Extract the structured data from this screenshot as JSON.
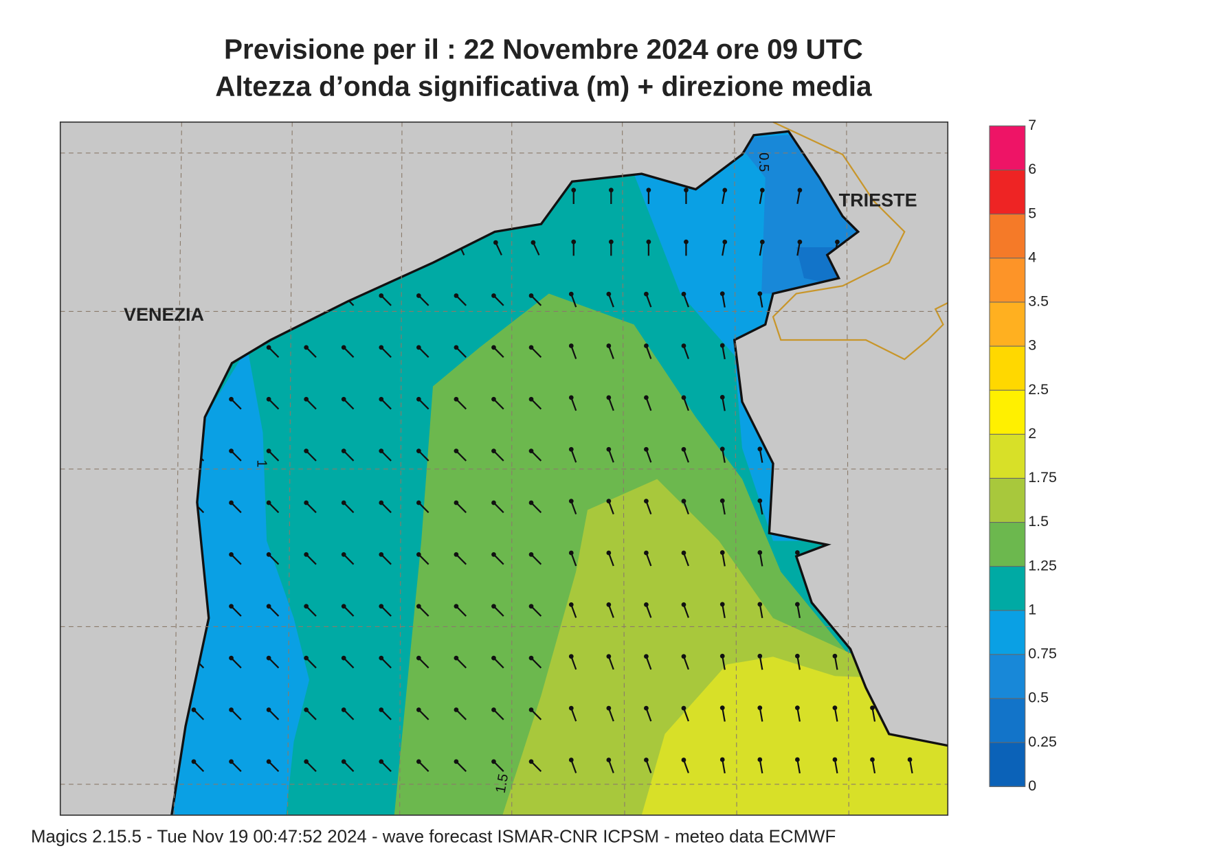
{
  "header": {
    "title": "Previsione per il  :  22 Novembre  2024   ore 09 UTC",
    "subtitle": "Altezza d’onda significativa (m) + direzione media"
  },
  "map": {
    "cities": [
      "VENEZIA",
      "TRIESTE"
    ],
    "contour_labels": [
      "0.5",
      "1",
      "1.5"
    ]
  },
  "colorbar": {
    "ticks": [
      0,
      0.25,
      0.5,
      0.75,
      1,
      1.25,
      1.5,
      1.75,
      2,
      2.5,
      3,
      3.5,
      4,
      5,
      6,
      7
    ],
    "colors": [
      "#0b62b8",
      "#1274c9",
      "#1888d8",
      "#0aa0e4",
      "#00aaa4",
      "#6cb84e",
      "#a8c83c",
      "#d8e028",
      "#fff000",
      "#ffd800",
      "#ffb020",
      "#fd9428",
      "#f57a28",
      "#ee2424",
      "#ee1466"
    ]
  },
  "footer": "Magics 2.15.5 - Tue Nov 19 00:47:52 2024 - wave forecast  ISMAR-CNR  ICPSM - meteo data    ECMWF"
}
